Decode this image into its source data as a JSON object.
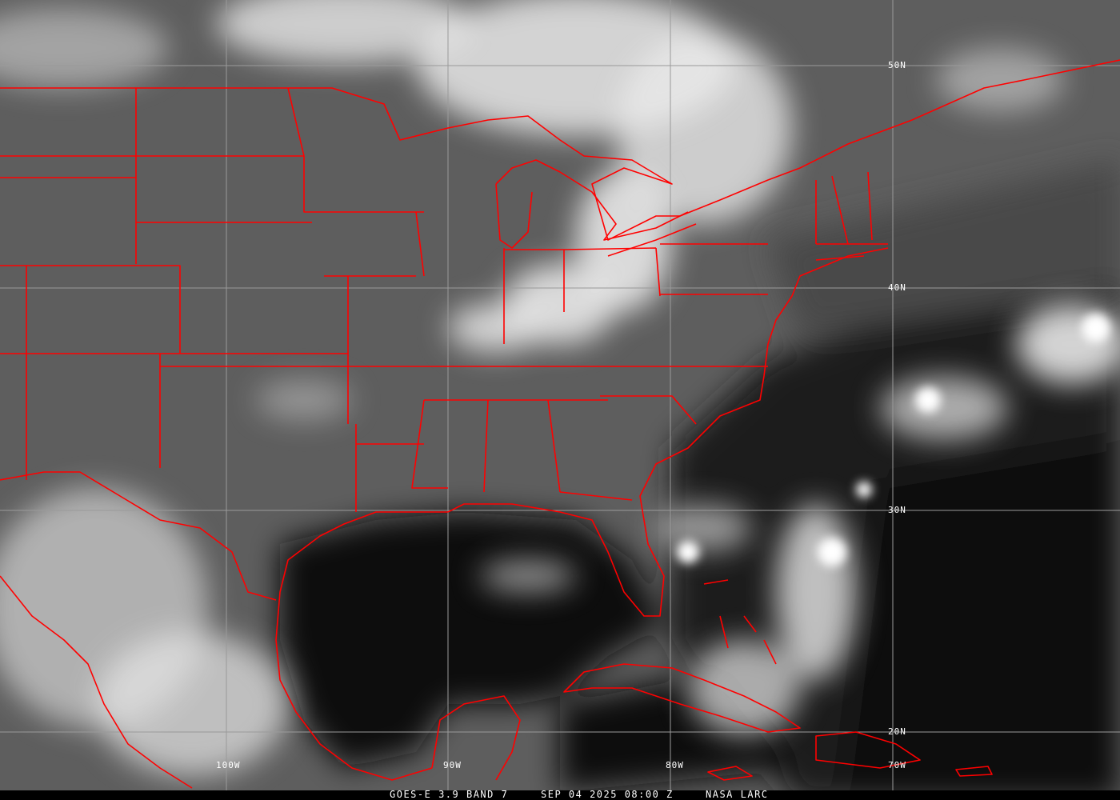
{
  "image": {
    "kind": "GOES-E infrared satellite image, eastern United States, Gulf of Mexico and Caribbean",
    "overlay_color": "#ff0000",
    "grid_color": "#9a9a9a"
  },
  "grid_labels": {
    "latitudes": [
      "50N",
      "40N",
      "30N",
      "20N"
    ],
    "longitudes": [
      "100W",
      "90W",
      "80W",
      "70W"
    ]
  },
  "caption": {
    "satellite": "GOES-E 3.9 BAND 7",
    "datetime": "SEP 04 2025 08:00 Z",
    "source": "NASA LARC"
  }
}
